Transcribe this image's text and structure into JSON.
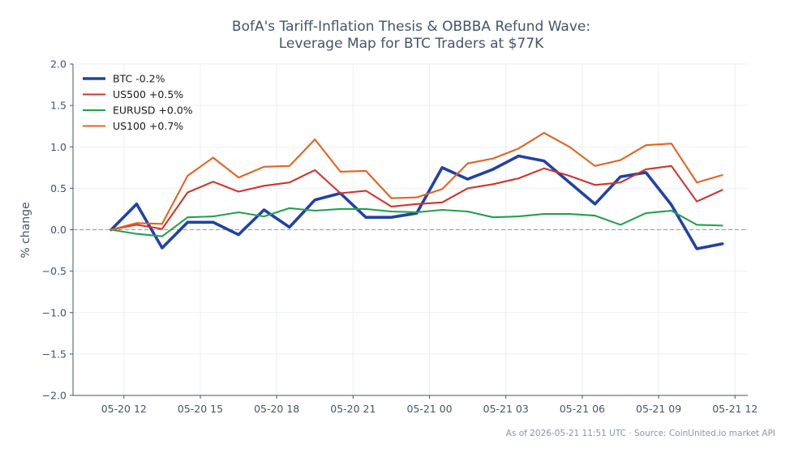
{
  "chart_data": {
    "type": "line",
    "title": "BofA's Tariff-Inflation Thesis & OBBBA Refund Wave:",
    "subtitle": "Leverage Map for BTC Traders at $77K",
    "ylabel": "% change",
    "xlabel": "",
    "ylim": [
      -2.0,
      2.0
    ],
    "xlim": [
      -3,
      50
    ],
    "y_ticks": [
      "2.0",
      "1.5",
      "1.0",
      "0.5",
      "0.0",
      "−0.5",
      "−1.0",
      "−1.5",
      "−2.0"
    ],
    "y_tick_values": [
      2.0,
      1.5,
      1.0,
      0.5,
      0.0,
      -0.5,
      -1.0,
      -1.5,
      -2.0
    ],
    "x_ticks": [
      "05-20 12",
      "05-20 15",
      "05-20 18",
      "05-20 21",
      "05-21 00",
      "05-21 03",
      "05-21 06",
      "05-21 09",
      "05-21 12"
    ],
    "x_tick_hours": [
      1,
      7,
      13,
      19,
      25,
      31,
      37,
      43,
      49
    ],
    "x_hours": [
      0,
      2,
      4,
      6,
      8,
      10,
      12,
      14,
      16,
      18,
      20,
      22,
      24,
      26,
      28,
      30,
      32,
      34,
      36,
      38,
      40,
      42,
      44,
      46,
      48
    ],
    "zero_line": true,
    "grid": true,
    "legend_position": "top-left",
    "series": [
      {
        "name": "BTC -0.2%",
        "color": "#2142a6",
        "width": 3.6,
        "values": [
          0.0,
          0.31,
          -0.22,
          0.09,
          0.09,
          -0.06,
          0.24,
          0.03,
          0.36,
          0.44,
          0.15,
          0.15,
          0.2,
          0.75,
          0.61,
          0.73,
          0.89,
          0.83,
          0.57,
          0.31,
          0.64,
          0.69,
          0.3,
          -0.23,
          -0.17
        ]
      },
      {
        "name": "US500 +0.5%",
        "color": "#d1342d",
        "width": 2.1,
        "values": [
          0.0,
          0.06,
          0.01,
          0.45,
          0.58,
          0.46,
          0.53,
          0.57,
          0.72,
          0.44,
          0.47,
          0.28,
          0.31,
          0.33,
          0.5,
          0.55,
          0.62,
          0.74,
          0.65,
          0.54,
          0.57,
          0.73,
          0.77,
          0.34,
          0.48
        ]
      },
      {
        "name": "EURUSD +0.0%",
        "color": "#22a04b",
        "width": 2.1,
        "values": [
          0.0,
          -0.05,
          -0.08,
          0.15,
          0.16,
          0.21,
          0.16,
          0.26,
          0.23,
          0.25,
          0.25,
          0.22,
          0.21,
          0.24,
          0.22,
          0.15,
          0.16,
          0.19,
          0.19,
          0.17,
          0.06,
          0.2,
          0.23,
          0.06,
          0.05
        ]
      },
      {
        "name": "US100 +0.7%",
        "color": "#e4631e",
        "width": 2.1,
        "values": [
          0.0,
          0.08,
          0.07,
          0.65,
          0.87,
          0.63,
          0.76,
          0.77,
          1.09,
          0.7,
          0.71,
          0.38,
          0.39,
          0.49,
          0.8,
          0.86,
          0.98,
          1.17,
          1.0,
          0.77,
          0.84,
          1.02,
          1.04,
          0.57,
          0.66
        ]
      }
    ]
  },
  "footer": "As of 2026-05-21 11:51 UTC · Source: CoinUnited.io market API"
}
